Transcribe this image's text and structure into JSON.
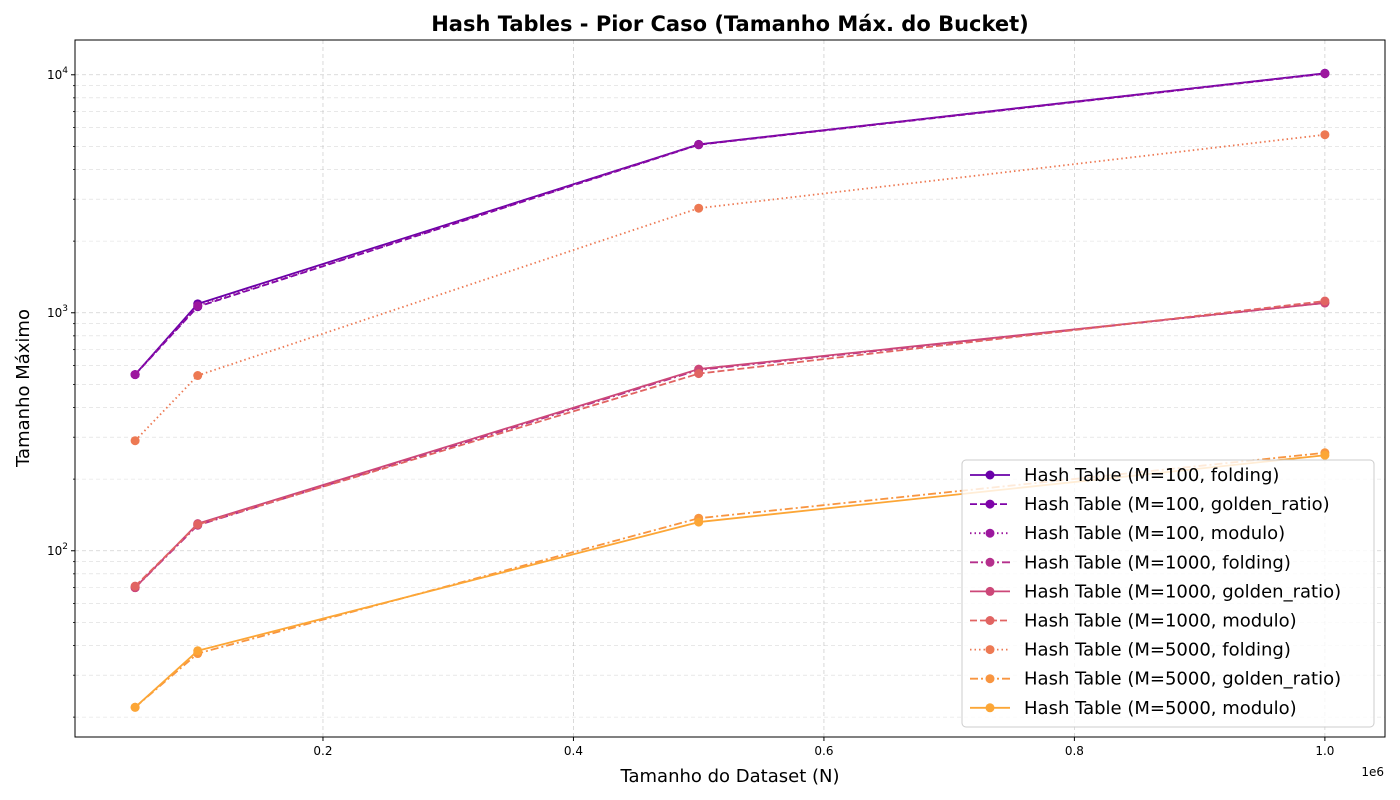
{
  "chart_data": {
    "type": "line",
    "title": "Hash Tables - Pior Caso (Tamanho Máx. do Bucket)",
    "xlabel": "Tamanho do Dataset (N)",
    "ylabel": "Tamanho Máximo",
    "x_offset_label": "1e6",
    "yscale": "log",
    "xlim": [
      2000,
      1048000
    ],
    "ylim": [
      16.5,
      14000
    ],
    "x_ticks": [
      {
        "value": 200000,
        "label": "0.2"
      },
      {
        "value": 400000,
        "label": "0.4"
      },
      {
        "value": 600000,
        "label": "0.6"
      },
      {
        "value": 800000,
        "label": "0.8"
      },
      {
        "value": 1000000,
        "label": "1.0"
      }
    ],
    "y_ticks": [
      {
        "value": 100,
        "base": "10",
        "exp": "2"
      },
      {
        "value": 1000,
        "base": "10",
        "exp": "3"
      },
      {
        "value": 10000,
        "base": "10",
        "exp": "4"
      }
    ],
    "grid": true,
    "legend_position": "lower-right",
    "x": [
      50000,
      100000,
      500000,
      1000000
    ],
    "series": [
      {
        "name": "Hash Table (M=100, folding)",
        "values": [
          550,
          1090,
          5100,
          10150
        ],
        "color": "#6a00a8",
        "dash": "solid"
      },
      {
        "name": "Hash Table (M=100, golden_ratio)",
        "values": [
          550,
          1060,
          5080,
          10100
        ],
        "color": "#7e03a8",
        "dash": "dashed"
      },
      {
        "name": "Hash Table (M=100, modulo)",
        "values": [
          550,
          1070,
          5090,
          10120
        ],
        "color": "#9c179e",
        "dash": "dotted"
      },
      {
        "name": "Hash Table (M=1000, folding)",
        "values": [
          70,
          128,
          575,
          1100
        ],
        "color": "#b52f8c",
        "dash": "dashdot"
      },
      {
        "name": "Hash Table (M=1000, golden_ratio)",
        "values": [
          70,
          130,
          580,
          1100
        ],
        "color": "#cc4778",
        "dash": "solid"
      },
      {
        "name": "Hash Table (M=1000, modulo)",
        "values": [
          71,
          129,
          555,
          1120
        ],
        "color": "#e16462",
        "dash": "dashed"
      },
      {
        "name": "Hash Table (M=5000, folding)",
        "values": [
          290,
          545,
          2750,
          5600
        ],
        "color": "#ed7953",
        "dash": "dotted"
      },
      {
        "name": "Hash Table (M=5000, golden_ratio)",
        "values": [
          22,
          37,
          137,
          258
        ],
        "color": "#f89540",
        "dash": "dashdot"
      },
      {
        "name": "Hash Table (M=5000, modulo)",
        "values": [
          22,
          38,
          132,
          252
        ],
        "color": "#fca636",
        "dash": "solid"
      }
    ]
  }
}
